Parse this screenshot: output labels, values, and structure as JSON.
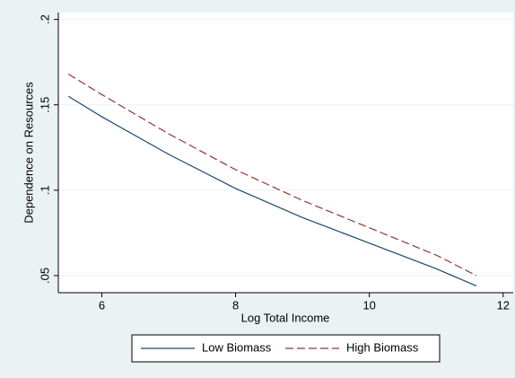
{
  "chart_data": {
    "type": "line",
    "x_label": "Log Total Income",
    "y_label": "Dependence on Resources",
    "x": [
      5.5,
      6,
      7,
      8,
      9,
      10,
      11,
      11.6
    ],
    "series": [
      {
        "name": "Low Biomass",
        "color": "#1a476f",
        "dash": "solid",
        "values": [
          0.155,
          0.143,
          0.121,
          0.101,
          0.084,
          0.069,
          0.054,
          0.044
        ]
      },
      {
        "name": "High Biomass",
        "color": "#90353b",
        "dash": "dashed",
        "values": [
          0.168,
          0.156,
          0.133,
          0.112,
          0.094,
          0.078,
          0.062,
          0.05
        ]
      }
    ],
    "xlim": [
      5.35,
      12.15
    ],
    "ylim": [
      0.04,
      0.204
    ],
    "xticks": [
      6,
      8,
      10,
      12
    ],
    "yticks": [
      {
        "value": 0.05,
        "label": ".05"
      },
      {
        "value": 0.1,
        "label": ".1"
      },
      {
        "value": 0.15,
        "label": ".15"
      },
      {
        "value": 0.2,
        "label": ".2"
      }
    ],
    "grid": true,
    "legend": "bottom"
  }
}
